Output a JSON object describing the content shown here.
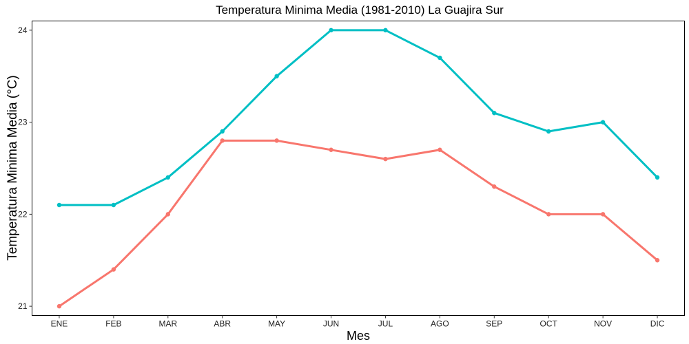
{
  "chart_data": {
    "type": "line",
    "title": "Temperatura Minima Media (1981-2010)  La Guajira Sur",
    "xlabel": "Mes",
    "ylabel": "Temperatura Minima Media  (°C)",
    "categories": [
      "ENE",
      "FEB",
      "MAR",
      "ABR",
      "MAY",
      "JUN",
      "JUL",
      "AGO",
      "SEP",
      "OCT",
      "NOV",
      "DIC"
    ],
    "ylim": [
      20.9,
      24.1
    ],
    "yticks": [
      21,
      22,
      23,
      24
    ],
    "grid": false,
    "legend": "none",
    "series": [
      {
        "color": "#F8766D",
        "values": [
          21.0,
          21.4,
          22.0,
          22.8,
          22.8,
          22.7,
          22.6,
          22.7,
          22.3,
          22.0,
          22.0,
          21.5
        ]
      },
      {
        "color": "#00BFC4",
        "values": [
          22.1,
          22.1,
          22.4,
          22.9,
          23.5,
          24.0,
          24.0,
          23.7,
          23.1,
          22.9,
          23.0,
          22.4
        ]
      }
    ]
  }
}
